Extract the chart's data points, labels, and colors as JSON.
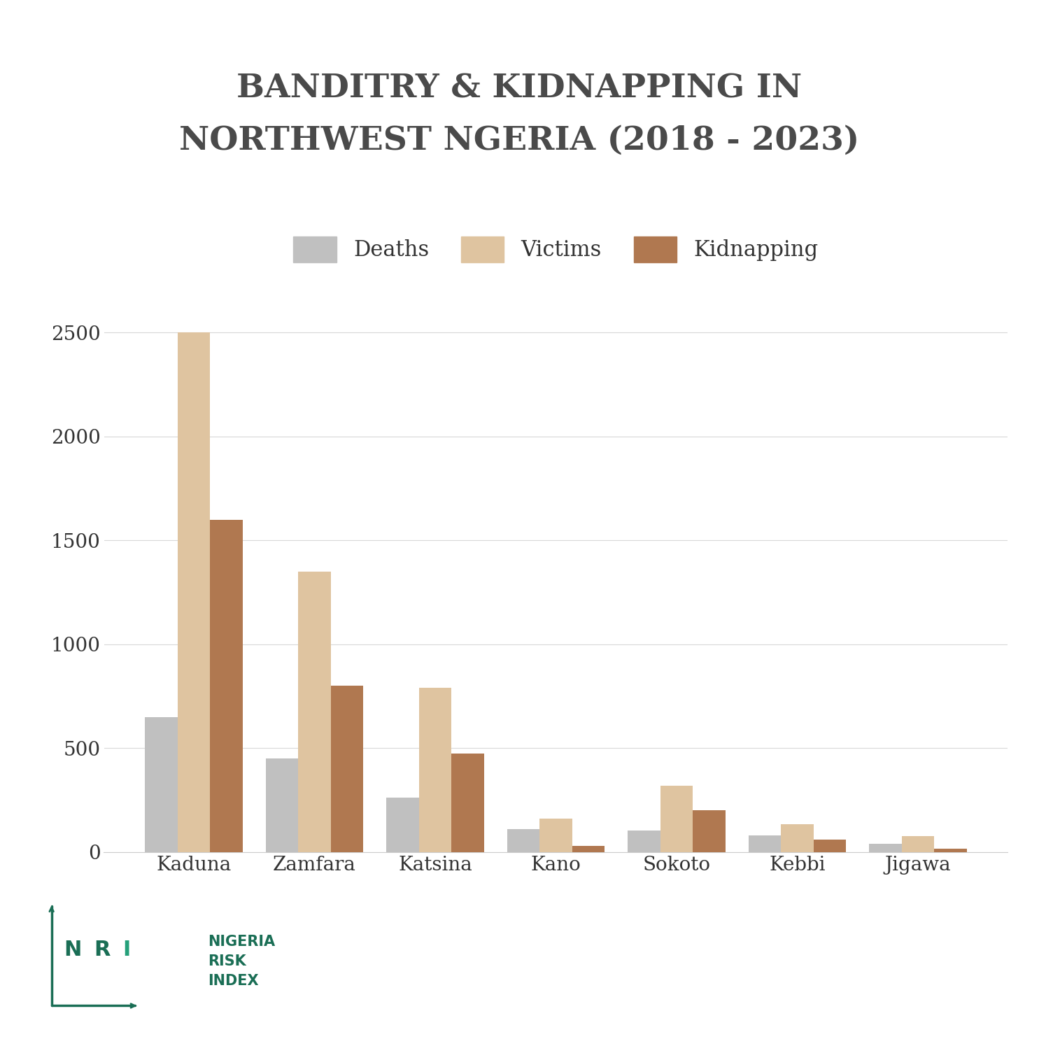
{
  "title_line1": "BANDITRY & KIDNAPPING IN",
  "title_line2": "NORTHWEST NGERIA (2018 - 2023)",
  "title_color": "#4a4a4a",
  "title_fontsize": 34,
  "categories": [
    "Kaduna",
    "Zamfara",
    "Katsina",
    "Kano",
    "Sokoto",
    "Kebbi",
    "Jigawa"
  ],
  "deaths": [
    650,
    450,
    260,
    110,
    105,
    80,
    40
  ],
  "victims": [
    2500,
    1350,
    790,
    160,
    320,
    135,
    75
  ],
  "kidnapping": [
    1600,
    800,
    475,
    30,
    200,
    60,
    15
  ],
  "color_deaths": "#c0c0c0",
  "color_victims": "#dfc4a0",
  "color_kidnapping": "#b07850",
  "ylim": [
    0,
    2600
  ],
  "yticks": [
    0,
    500,
    1000,
    1500,
    2000,
    2500
  ],
  "legend_labels": [
    "Deaths",
    "Victims",
    "Kidnapping"
  ],
  "background_color": "#ffffff",
  "bar_width": 0.27,
  "logo_color_dark": "#1a6e55",
  "logo_color_light": "#25a07a",
  "grid_color": "#d8d8d8",
  "tick_color": "#333333",
  "xticklabel_fontsize": 20,
  "yticklabel_fontsize": 20,
  "legend_fontsize": 22
}
